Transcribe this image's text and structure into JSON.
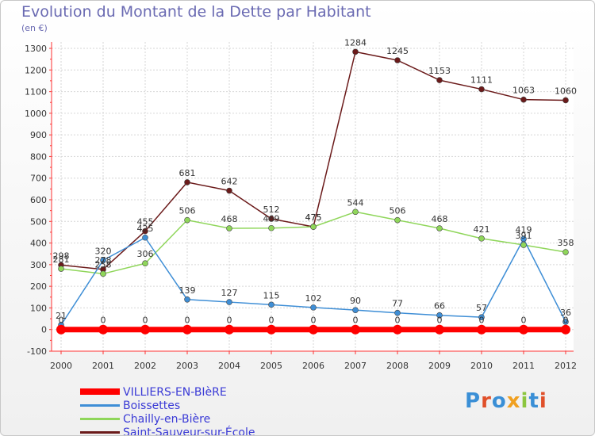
{
  "header": {
    "title": "Evolution du Montant de la Dette par Habitant",
    "unit": "(en €)"
  },
  "logo": {
    "text": "Proxiti",
    "colors": [
      "#3a8fd6",
      "#e0502a",
      "#3a8fd6",
      "#f0a020",
      "#8cc63f",
      "#3a8fd6",
      "#e0502a"
    ]
  },
  "chart_data": {
    "type": "line",
    "title": "Evolution du Montant de la Dette par Habitant",
    "subtitle": "(en €)",
    "xlabel": "",
    "ylabel": "",
    "ylim": [
      -100,
      1300
    ],
    "yticks": [
      -100,
      0,
      100,
      200,
      300,
      400,
      500,
      600,
      700,
      800,
      900,
      1000,
      1100,
      1200,
      1300
    ],
    "x": [
      "2000",
      "2001",
      "2002",
      "2003",
      "2004",
      "2005",
      "2006",
      "2007",
      "2008",
      "2009",
      "2010",
      "2011",
      "2012"
    ],
    "grid": true,
    "legend_position": "bottom-left",
    "series": [
      {
        "name": "VILLIERS-EN-BIèRE",
        "color": "#ff0000",
        "values": [
          0,
          0,
          0,
          0,
          0,
          0,
          0,
          0,
          0,
          0,
          0,
          0,
          0
        ],
        "labels": [
          "0",
          "0",
          "0",
          "0",
          "0",
          "0",
          "0",
          "0",
          "0",
          "0",
          "0",
          "0",
          "0"
        ]
      },
      {
        "name": "Boissettes",
        "color": "#3e8ed6",
        "values": [
          21,
          320,
          425,
          139,
          127,
          115,
          102,
          90,
          77,
          66,
          57,
          419,
          36
        ],
        "labels": [
          "21",
          "320",
          "425",
          "139",
          "127",
          "115",
          "102",
          "90",
          "77",
          "66",
          "57",
          "419",
          "36"
        ]
      },
      {
        "name": "Chailly-en-Bière",
        "color": "#8fd65a",
        "values": [
          281,
          258,
          306,
          506,
          468,
          469,
          475,
          544,
          506,
          468,
          421,
          391,
          358
        ],
        "labels": [
          "281",
          "258",
          "306",
          "506",
          "468",
          "469",
          "475",
          "544",
          "506",
          "468",
          "421",
          "391",
          "358"
        ]
      },
      {
        "name": "Saint-Sauveur-sur-École",
        "color": "#6b1a1a",
        "values": [
          298,
          278,
          455,
          681,
          642,
          512,
          475,
          1284,
          1245,
          1153,
          1111,
          1063,
          1060
        ],
        "labels": [
          "298",
          "278",
          "455",
          "681",
          "642",
          "512",
          "475",
          "1284",
          "1245",
          "1153",
          "1111",
          "1063",
          "1060"
        ]
      }
    ]
  }
}
